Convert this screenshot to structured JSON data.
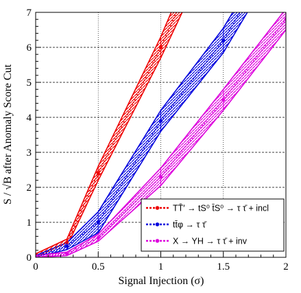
{
  "chart_data": {
    "type": "line",
    "xlabel": "Signal Injection (σ)",
    "ylabel": "S / √B after Anomaly Score Cut",
    "xlim": [
      0,
      2
    ],
    "ylim": [
      0,
      7
    ],
    "x_ticks": [
      "0",
      "0.5",
      "1",
      "1.5",
      "2"
    ],
    "y_ticks": [
      "0",
      "1",
      "2",
      "3",
      "4",
      "5",
      "6",
      "7"
    ],
    "grid": "dotted, horizontal dashed at y=1..7",
    "legend_position": "bottom-right",
    "series": [
      {
        "name": "TT̄′ → tS⁰ t̄S⁰ → τ τ̄ + incl",
        "color": "#ee0000",
        "x": [
          0,
          0.25,
          0.5,
          1,
          1.25
        ],
        "y": [
          0,
          0.42,
          2.4,
          6.0,
          8.0
        ],
        "band": [
          0.1,
          0.1,
          0.2,
          0.3,
          0.4
        ]
      },
      {
        "name": "tt̄φ → τ τ̄",
        "color": "#0000dd",
        "x": [
          0,
          0.25,
          0.5,
          1,
          1.5,
          1.8
        ],
        "y": [
          0,
          0.32,
          1.0,
          3.9,
          6.2,
          8.0
        ],
        "band": [
          0.05,
          0.1,
          0.3,
          0.3,
          0.35,
          0.35
        ]
      },
      {
        "name": "X → YH → τ τ̄ + inv",
        "color": "#dd00dd",
        "x": [
          0,
          0.25,
          0.5,
          1,
          1.5,
          2
        ],
        "y": [
          0,
          0.1,
          0.56,
          2.3,
          4.5,
          6.8
        ],
        "band": [
          0.05,
          0.05,
          0.1,
          0.25,
          0.3,
          0.3
        ]
      }
    ]
  }
}
